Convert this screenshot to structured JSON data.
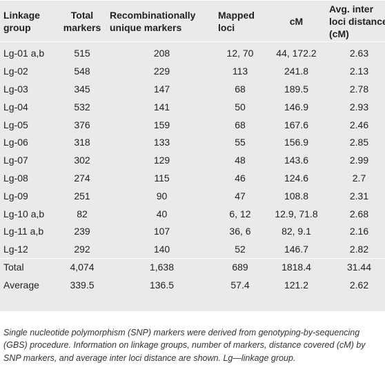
{
  "table": {
    "headers": [
      "Linkage group",
      "Total markers",
      "Recombinationally unique markers",
      "Mapped loci",
      "cM",
      "Avg. inter loci distance (cM)"
    ],
    "rows": [
      [
        "Lg-01 a,b",
        "515",
        "208",
        "12, 70",
        "44, 172.2",
        "2.63"
      ],
      [
        "Lg-02",
        "548",
        "229",
        "113",
        "241.8",
        "2.13"
      ],
      [
        "Lg-03",
        "345",
        "147",
        "68",
        "189.5",
        "2.78"
      ],
      [
        "Lg-04",
        "532",
        "141",
        "50",
        "146.9",
        "2.93"
      ],
      [
        "Lg-05",
        "376",
        "159",
        "68",
        "167.6",
        "2.46"
      ],
      [
        "Lg-06",
        "318",
        "133",
        "55",
        "156.9",
        "2.85"
      ],
      [
        "Lg-07",
        "302",
        "129",
        "48",
        "143.6",
        "2.99"
      ],
      [
        "Lg-08",
        "274",
        "115",
        "46",
        "124.6",
        "2.7"
      ],
      [
        "Lg-09",
        "251",
        "90",
        "47",
        "108.8",
        "2.31"
      ],
      [
        "Lg-10 a,b",
        "82",
        "40",
        "6, 12",
        "12.9, 71.8",
        "2.68"
      ],
      [
        "Lg-11 a,b",
        "239",
        "107",
        "36, 6",
        "82, 9.1",
        "2.16"
      ],
      [
        "Lg-12",
        "292",
        "140",
        "52",
        "146.7",
        "2.82"
      ]
    ],
    "summary_rows": [
      [
        "Total",
        "4,074",
        "1,638",
        "689",
        "1818.4",
        "31.44"
      ],
      [
        "Average",
        "339.5",
        "136.5",
        "57.4",
        "121.2",
        "2.62"
      ]
    ]
  },
  "footnote": "Single nucleotide polymorphism (SNP) markers were derived from genotyping-by-sequencing (GBS) procedure. Information on linkage groups, number of markers, distance covered (cM) by SNP markers, and average inter loci distance are shown. Lg—linkage group."
}
